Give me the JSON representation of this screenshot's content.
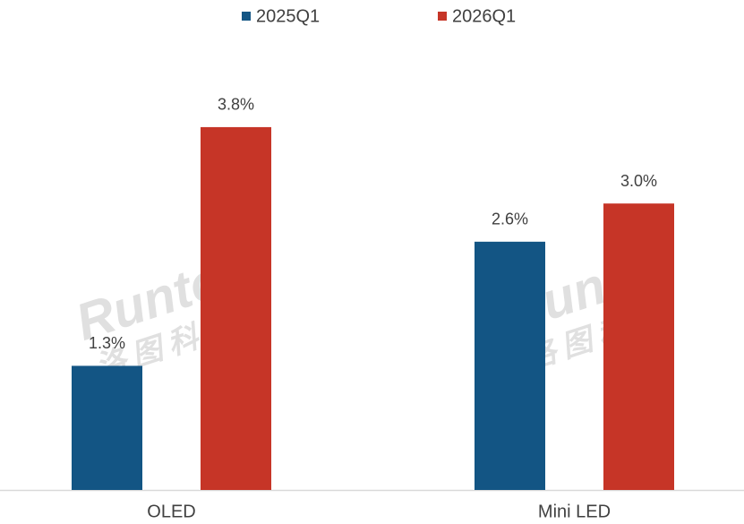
{
  "chart_data": {
    "type": "bar",
    "categories": [
      "OLED",
      "Mini LED"
    ],
    "series": [
      {
        "name": "2025Q1",
        "color": "#135584",
        "values": [
          1.3,
          2.6
        ],
        "value_labels": [
          "1.3%",
          "2.6%"
        ]
      },
      {
        "name": "2026Q1",
        "color": "#c63527",
        "values": [
          3.8,
          3.0
        ],
        "value_labels": [
          "3.8%",
          "3.0%"
        ]
      }
    ],
    "watermark": [
      "Runto",
      "洛图科技"
    ]
  }
}
